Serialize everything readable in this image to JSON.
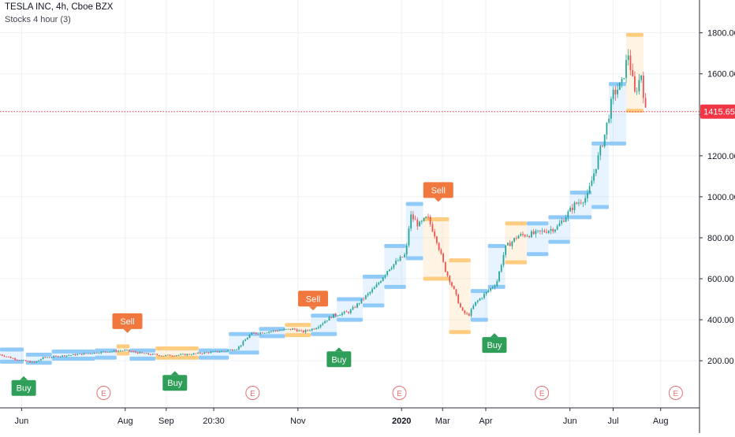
{
  "header": {
    "title": "TESLA INC, 4h, Cboe BZX",
    "indicator": "Stocks 4 hour (3)"
  },
  "colors": {
    "up": "#26a69a",
    "down": "#ef5350",
    "support_band": "#90caf9",
    "resistance_band": "#ffcc80",
    "buy": "#2e9e58",
    "sell": "#f0773d",
    "last_price": "#f23645",
    "earnings": "#e57373"
  },
  "chart_data": {
    "type": "candlestick",
    "title": "TESLA INC, 4h, Cboe BZX",
    "y_axis": {
      "ticks": [
        200,
        400,
        600,
        800,
        1000,
        1200,
        1400,
        1600,
        1800
      ],
      "tick_labels": [
        "200.00",
        "400.00",
        "600.00",
        "800.00",
        "1000.00",
        "1200.00",
        "1400.00",
        "1600.00",
        "1800.00"
      ],
      "range": [
        -30,
        1960
      ],
      "position": "right"
    },
    "x_axis": {
      "ticks": [
        0.5,
        2.9,
        3.85,
        4.95,
        6.9,
        9.3,
        10.25,
        11.25,
        13.2,
        14.2,
        15.3
      ],
      "tick_labels": [
        "Jun",
        "Aug",
        "Sep",
        "20:30",
        "Nov",
        "2020",
        "Mar",
        "Apr",
        "Jun",
        "Jul",
        "Aug"
      ],
      "range": [
        0,
        16.2
      ]
    },
    "grid": true,
    "last_price": {
      "value": 1415.65,
      "label": "1415.65"
    },
    "price_path": [
      [
        0.0,
        230
      ],
      [
        0.4,
        205
      ],
      [
        0.8,
        190
      ],
      [
        1.0,
        215
      ],
      [
        1.5,
        225
      ],
      [
        2.0,
        235
      ],
      [
        2.5,
        245
      ],
      [
        2.9,
        250
      ],
      [
        3.3,
        235
      ],
      [
        3.8,
        225
      ],
      [
        4.3,
        230
      ],
      [
        4.8,
        240
      ],
      [
        5.2,
        248
      ],
      [
        5.5,
        260
      ],
      [
        5.8,
        330
      ],
      [
        6.3,
        345
      ],
      [
        6.8,
        355
      ],
      [
        7.0,
        340
      ],
      [
        7.3,
        360
      ],
      [
        7.7,
        420
      ],
      [
        8.1,
        440
      ],
      [
        8.4,
        500
      ],
      [
        8.7,
        560
      ],
      [
        9.0,
        650
      ],
      [
        9.4,
        720
      ],
      [
        9.5,
        910
      ],
      [
        9.7,
        860
      ],
      [
        9.9,
        900
      ],
      [
        10.1,
        800
      ],
      [
        10.3,
        650
      ],
      [
        10.5,
        550
      ],
      [
        10.7,
        440
      ],
      [
        10.85,
        420
      ],
      [
        11.0,
        480
      ],
      [
        11.3,
        540
      ],
      [
        11.5,
        580
      ],
      [
        11.7,
        750
      ],
      [
        12.0,
        810
      ],
      [
        12.4,
        820
      ],
      [
        12.9,
        850
      ],
      [
        13.3,
        960
      ],
      [
        13.6,
        1000
      ],
      [
        14.0,
        1300
      ],
      [
        14.2,
        1500
      ],
      [
        14.4,
        1550
      ],
      [
        14.55,
        1700
      ],
      [
        14.7,
        1500
      ],
      [
        14.85,
        1600
      ],
      [
        14.95,
        1415.65
      ]
    ],
    "bands": [
      {
        "kind": "support",
        "x0": 0.0,
        "x1": 0.55,
        "y0": 195,
        "y1": 255
      },
      {
        "kind": "support",
        "x0": 0.6,
        "x1": 1.2,
        "y0": 190,
        "y1": 230
      },
      {
        "kind": "support",
        "x0": 1.2,
        "x1": 2.2,
        "y0": 210,
        "y1": 245
      },
      {
        "kind": "support",
        "x0": 2.2,
        "x1": 2.7,
        "y0": 215,
        "y1": 250
      },
      {
        "kind": "resistance",
        "x0": 2.7,
        "x1": 3.0,
        "y0": 235,
        "y1": 270
      },
      {
        "kind": "support",
        "x0": 3.0,
        "x1": 3.6,
        "y0": 210,
        "y1": 250
      },
      {
        "kind": "resistance",
        "x0": 3.6,
        "x1": 4.6,
        "y0": 215,
        "y1": 260
      },
      {
        "kind": "support",
        "x0": 4.6,
        "x1": 5.3,
        "y0": 215,
        "y1": 250
      },
      {
        "kind": "support",
        "x0": 5.3,
        "x1": 6.0,
        "y0": 240,
        "y1": 330
      },
      {
        "kind": "support",
        "x0": 6.0,
        "x1": 6.6,
        "y0": 320,
        "y1": 355
      },
      {
        "kind": "resistance",
        "x0": 6.6,
        "x1": 7.2,
        "y0": 325,
        "y1": 375
      },
      {
        "kind": "support",
        "x0": 7.2,
        "x1": 7.8,
        "y0": 330,
        "y1": 420
      },
      {
        "kind": "support",
        "x0": 7.8,
        "x1": 8.4,
        "y0": 400,
        "y1": 500
      },
      {
        "kind": "support",
        "x0": 8.4,
        "x1": 8.9,
        "y0": 470,
        "y1": 610
      },
      {
        "kind": "support",
        "x0": 8.9,
        "x1": 9.4,
        "y0": 560,
        "y1": 760
      },
      {
        "kind": "support",
        "x0": 9.4,
        "x1": 9.8,
        "y0": 700,
        "y1": 965
      },
      {
        "kind": "resistance",
        "x0": 9.8,
        "x1": 10.4,
        "y0": 600,
        "y1": 890
      },
      {
        "kind": "resistance",
        "x0": 10.4,
        "x1": 10.9,
        "y0": 340,
        "y1": 690
      },
      {
        "kind": "support",
        "x0": 10.9,
        "x1": 11.3,
        "y0": 400,
        "y1": 540
      },
      {
        "kind": "support",
        "x0": 11.3,
        "x1": 11.7,
        "y0": 560,
        "y1": 760
      },
      {
        "kind": "resistance",
        "x0": 11.7,
        "x1": 12.2,
        "y0": 680,
        "y1": 870
      },
      {
        "kind": "support",
        "x0": 12.2,
        "x1": 12.7,
        "y0": 720,
        "y1": 870
      },
      {
        "kind": "support",
        "x0": 12.7,
        "x1": 13.2,
        "y0": 780,
        "y1": 900
      },
      {
        "kind": "support",
        "x0": 13.2,
        "x1": 13.7,
        "y0": 900,
        "y1": 1020
      },
      {
        "kind": "support",
        "x0": 13.7,
        "x1": 14.1,
        "y0": 950,
        "y1": 1260
      },
      {
        "kind": "support",
        "x0": 14.1,
        "x1": 14.5,
        "y0": 1260,
        "y1": 1550
      },
      {
        "kind": "resistance",
        "x0": 14.5,
        "x1": 14.9,
        "y0": 1420,
        "y1": 1790
      }
    ],
    "signals": [
      {
        "type": "buy",
        "label": "Buy",
        "x": 0.55,
        "price": 190
      },
      {
        "type": "sell",
        "label": "Sell",
        "x": 2.95,
        "price": 270
      },
      {
        "type": "buy",
        "label": "Buy",
        "x": 4.05,
        "price": 215
      },
      {
        "type": "sell",
        "label": "Sell",
        "x": 7.25,
        "price": 380
      },
      {
        "type": "buy",
        "label": "Buy",
        "x": 7.85,
        "price": 330
      },
      {
        "type": "sell",
        "label": "Sell",
        "x": 10.15,
        "price": 910
      },
      {
        "type": "buy",
        "label": "Buy",
        "x": 11.45,
        "price": 400
      }
    ],
    "earnings": [
      {
        "label": "E",
        "x": 2.4
      },
      {
        "label": "E",
        "x": 5.85
      },
      {
        "label": "E",
        "x": 9.25
      },
      {
        "label": "E",
        "x": 12.55
      },
      {
        "label": "E",
        "x": 15.65
      }
    ]
  }
}
